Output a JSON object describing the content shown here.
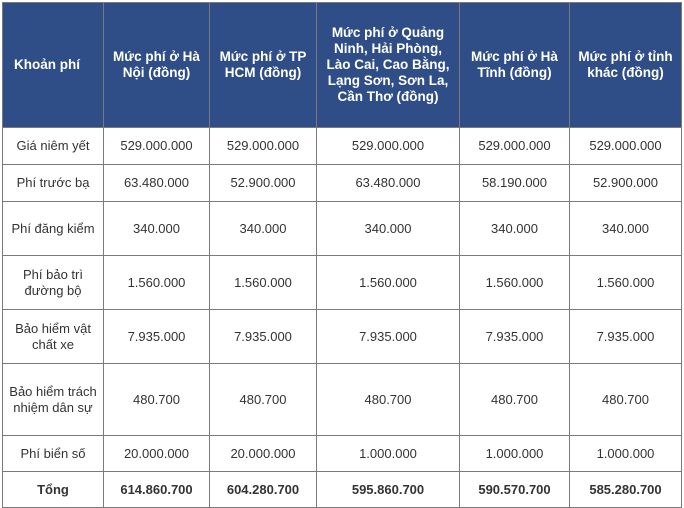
{
  "table": {
    "headers": [
      "Khoản phí",
      "Mức phí ở Hà Nội (đồng)",
      "Mức phí ở TP HCM (đồng)",
      "Mức phí ở Quảng Ninh, Hải Phòng, Lào Cai, Cao Bằng, Lạng Sơn, Sơn La, Cần Thơ (đồng)",
      "Mức phí ở Hà Tĩnh (đồng)",
      "Mức phí ở tỉnh khác (đồng)"
    ],
    "rows": [
      [
        "Giá niêm yết",
        "529.000.000",
        "529.000.000",
        "529.000.000",
        "529.000.000",
        "529.000.000"
      ],
      [
        "Phí trước bạ",
        "63.480.000",
        "52.900.000",
        "63.480.000",
        "58.190.000",
        "52.900.000"
      ],
      [
        "Phí đăng kiểm",
        "340.000",
        "340.000",
        "340.000",
        "340.000",
        "340.000"
      ],
      [
        "Phí bảo trì đường bộ",
        "1.560.000",
        "1.560.000",
        "1.560.000",
        "1.560.000",
        "1.560.000"
      ],
      [
        "Bảo hiểm vật chất xe",
        "7.935.000",
        "7.935.000",
        "7.935.000",
        "7.935.000",
        "7.935.000"
      ],
      [
        "Bảo hiểm trách nhiệm dân sự",
        "480.700",
        "480.700",
        "480.700",
        "480.700",
        "480.700"
      ],
      [
        "Phí biển số",
        "20.000.000",
        "20.000.000",
        "1.000.000",
        "1.000.000",
        "1.000.000"
      ]
    ],
    "total": [
      "Tổng",
      "614.860.700",
      "604.280.700",
      "595.860.700",
      "590.570.700",
      "585.280.700"
    ]
  },
  "colors": {
    "header_bg": "#2f4d86",
    "header_text": "#ffffff",
    "border": "#7a7a7a",
    "body_text": "#333333"
  }
}
